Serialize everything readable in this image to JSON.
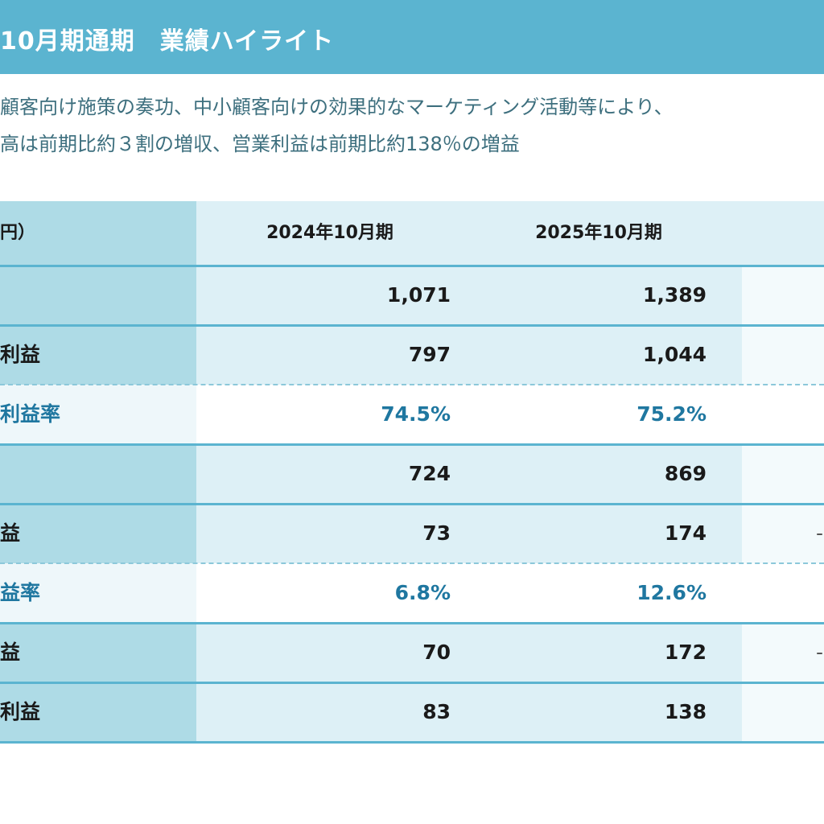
{
  "header": {
    "title": "10月期通期　業績ハイライト"
  },
  "summary": {
    "line1": "顧客向け施策の奏功、中小顧客向けの効果的なマーケティング活動等により、",
    "line2": "高は前期比約３割の増収、営業利益は前期比約138％の増益"
  },
  "table": {
    "unit_label": "円）",
    "columns": [
      "2024年10月期",
      "2025年10月期"
    ],
    "rows": [
      {
        "label": "",
        "values": [
          "1,071",
          "1,389"
        ],
        "type": "normal"
      },
      {
        "label": "利益",
        "values": [
          "797",
          "1,044"
        ],
        "type": "normal"
      },
      {
        "label": "利益率",
        "values": [
          "74.5%",
          "75.2%"
        ],
        "type": "ratio"
      },
      {
        "label": "",
        "values": [
          "724",
          "869"
        ],
        "type": "normal"
      },
      {
        "label": "益",
        "values": [
          "73",
          "174"
        ],
        "type": "normal"
      },
      {
        "label": "益率",
        "values": [
          "6.8%",
          "12.6%"
        ],
        "type": "ratio"
      },
      {
        "label": "益",
        "values": [
          "70",
          "172"
        ],
        "type": "normal"
      },
      {
        "label": "利益",
        "values": [
          "83",
          "138"
        ],
        "type": "normal"
      }
    ],
    "partial_col_marks": [
      "",
      "",
      "",
      "",
      "-",
      "",
      "-",
      ""
    ]
  }
}
